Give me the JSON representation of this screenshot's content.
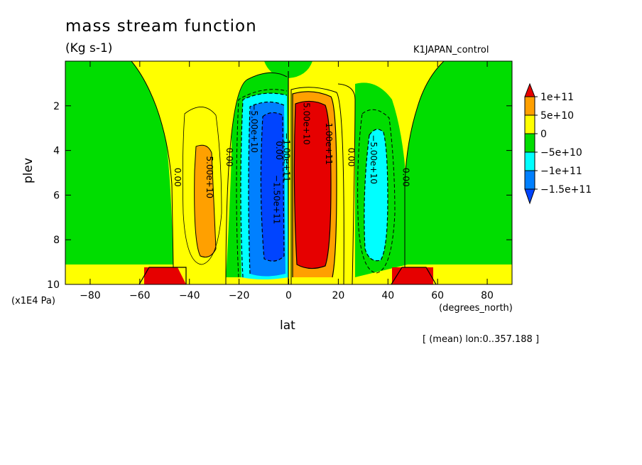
{
  "title": "mass stream function",
  "units": "(Kg s-1)",
  "run_label": "K1JAPAN_control",
  "footer": "[ (mean) lon:0..357.188 ]",
  "chart_data": {
    "type": "contour",
    "title": "mass stream function",
    "subtitle": "(Kg s-1)",
    "xlabel": "lat",
    "xunits": "(degrees_north)",
    "ylabel": "plev",
    "yunits": "(x1E4 Pa)",
    "xlim": [
      -90,
      90
    ],
    "ylim": [
      10,
      0
    ],
    "xticks": [
      "−80",
      "−60",
      "−40",
      "−20",
      "0",
      "20",
      "40",
      "60",
      "80"
    ],
    "xtick_values": [
      -80,
      -60,
      -40,
      -20,
      0,
      20,
      40,
      60,
      80
    ],
    "yticks": [
      "2",
      "4",
      "6",
      "8",
      "10"
    ],
    "ytick_values": [
      2,
      4,
      6,
      8,
      10
    ],
    "levels": [
      -150000000000.0,
      -100000000000.0,
      -50000000000.0,
      0,
      50000000000.0,
      100000000000.0
    ],
    "colorbar": {
      "labels": [
        "1e+11",
        "5e+10",
        "0",
        "−5e+10",
        "−1e+11",
        "−1.5e+11"
      ],
      "colors": [
        "#e60000",
        "#ffa000",
        "#ffff00",
        "#00dd00",
        "#00ffff",
        "#0080ff",
        "#0044ff"
      ]
    },
    "contour_labels": [
      {
        "text": "5.00e+10",
        "lat": -33,
        "plev": 5.2
      },
      {
        "text": "−5.00e+10",
        "lat": -15,
        "plev": 3.0
      },
      {
        "text": "−1.00e+11",
        "lat": -2,
        "plev": 4.3
      },
      {
        "text": "−1.50e+11",
        "lat": -6,
        "plev": 6.2
      },
      {
        "text": "1.00e+11",
        "lat": 15,
        "plev": 3.7
      },
      {
        "text": "5.00e+10",
        "lat": 6,
        "plev": 2.8
      },
      {
        "text": "−5.00e+10",
        "lat": 33,
        "plev": 4.4
      },
      {
        "text": "0.00",
        "lat": -46,
        "plev": 5.2
      },
      {
        "text": "0.00",
        "lat": -25,
        "plev": 4.3
      },
      {
        "text": "0.00",
        "lat": -5,
        "plev": 4.0
      },
      {
        "text": "0.00",
        "lat": 24,
        "plev": 4.3
      },
      {
        "text": "0.00",
        "lat": 46,
        "plev": 5.2
      }
    ]
  }
}
